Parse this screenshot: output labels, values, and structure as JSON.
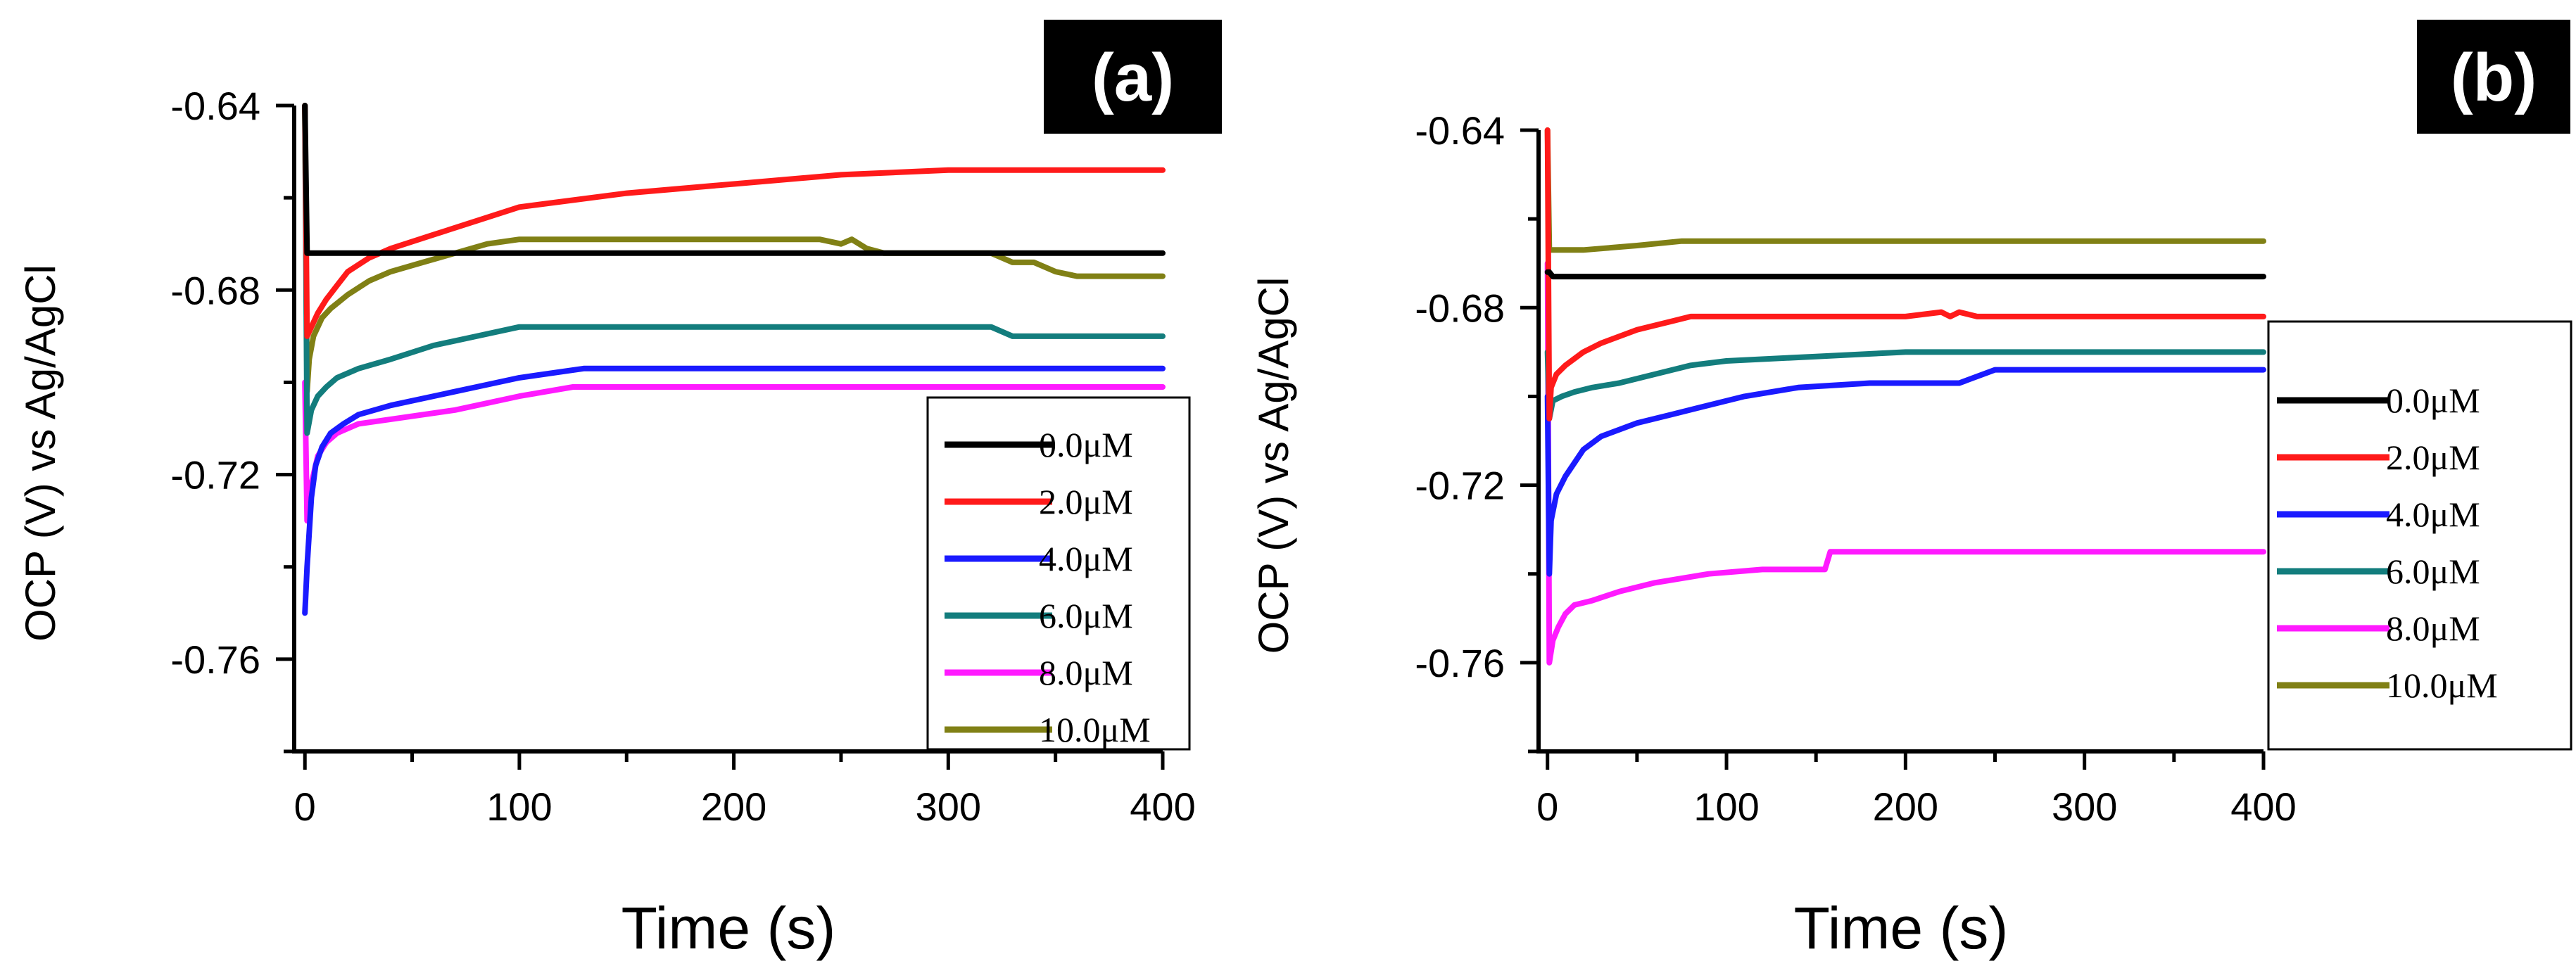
{
  "chart_data": [
    {
      "type": "line",
      "panel_label": "(a)",
      "xlabel": "Time (s)",
      "ylabel": "OCP (V) vs Ag/AgCl",
      "xlim": [
        -5,
        400
      ],
      "ylim": [
        -0.78,
        -0.64
      ],
      "xticks": [
        0,
        100,
        200,
        300,
        400
      ],
      "yticks": [
        -0.64,
        -0.68,
        -0.72,
        -0.76
      ],
      "ytick_labels": [
        "-0.64",
        "-0.68",
        "-0.72",
        "-0.76"
      ],
      "legend": "bottom-right",
      "series": [
        {
          "name": "0.0μM",
          "color": "#000000",
          "x": [
            0,
            1,
            2,
            5,
            400
          ],
          "y": [
            -0.64,
            -0.672,
            -0.672,
            -0.672,
            -0.672
          ]
        },
        {
          "name": "2.0μM",
          "color": "#ff1a1a",
          "x": [
            0,
            1,
            3,
            6,
            10,
            15,
            20,
            30,
            40,
            60,
            80,
            100,
            150,
            200,
            250,
            300,
            350,
            400
          ],
          "y": [
            -0.64,
            -0.69,
            -0.688,
            -0.685,
            -0.682,
            -0.679,
            -0.676,
            -0.673,
            -0.671,
            -0.668,
            -0.665,
            -0.662,
            -0.659,
            -0.657,
            -0.655,
            -0.654,
            -0.654,
            -0.654
          ]
        },
        {
          "name": "4.0μM",
          "color": "#1a1aff",
          "x": [
            0,
            1,
            3,
            5,
            8,
            12,
            18,
            25,
            40,
            60,
            80,
            100,
            130,
            200,
            300,
            400
          ],
          "y": [
            -0.75,
            -0.74,
            -0.725,
            -0.718,
            -0.714,
            -0.711,
            -0.709,
            -0.707,
            -0.705,
            -0.703,
            -0.701,
            -0.699,
            -0.697,
            -0.697,
            -0.697,
            -0.697
          ]
        },
        {
          "name": "6.0μM",
          "color": "#137d7d",
          "x": [
            0,
            1,
            3,
            6,
            10,
            15,
            25,
            40,
            60,
            80,
            100,
            150,
            200,
            320,
            330,
            360,
            400
          ],
          "y": [
            -0.64,
            -0.711,
            -0.706,
            -0.703,
            -0.701,
            -0.699,
            -0.697,
            -0.695,
            -0.692,
            -0.69,
            -0.688,
            -0.688,
            -0.688,
            -0.688,
            -0.69,
            -0.69,
            -0.69
          ]
        },
        {
          "name": "8.0μM",
          "color": "#ff1aff",
          "x": [
            0,
            1,
            3,
            6,
            10,
            15,
            25,
            40,
            70,
            100,
            125,
            200,
            300,
            400
          ],
          "y": [
            -0.7,
            -0.73,
            -0.722,
            -0.716,
            -0.713,
            -0.711,
            -0.709,
            -0.708,
            -0.706,
            -0.703,
            -0.701,
            -0.701,
            -0.701,
            -0.701
          ]
        },
        {
          "name": "10.0μM",
          "color": "#808015",
          "x": [
            0,
            1,
            2,
            4,
            8,
            12,
            20,
            30,
            40,
            55,
            70,
            85,
            100,
            150,
            200,
            240,
            250,
            255,
            262,
            270,
            320,
            330,
            340,
            350,
            360,
            400
          ],
          "y": [
            -0.64,
            -0.702,
            -0.695,
            -0.69,
            -0.686,
            -0.684,
            -0.681,
            -0.678,
            -0.676,
            -0.674,
            -0.672,
            -0.67,
            -0.669,
            -0.669,
            -0.669,
            -0.669,
            -0.67,
            -0.669,
            -0.671,
            -0.672,
            -0.672,
            -0.674,
            -0.674,
            -0.676,
            -0.677,
            -0.677
          ]
        }
      ]
    },
    {
      "type": "line",
      "panel_label": "(b)",
      "xlabel": "Time (s)",
      "ylabel": "OCP (V) vs Ag/AgCl",
      "xlim": [
        -5,
        400
      ],
      "ylim": [
        -0.78,
        -0.64
      ],
      "xticks": [
        0,
        100,
        200,
        300,
        400
      ],
      "yticks": [
        -0.64,
        -0.68,
        -0.72,
        -0.76
      ],
      "ytick_labels": [
        "-0.64",
        "-0.68",
        "-0.72",
        "-0.76"
      ],
      "legend": "outside-right",
      "series": [
        {
          "name": "0.0μM",
          "color": "#000000",
          "x": [
            0,
            1,
            3,
            400
          ],
          "y": [
            -0.672,
            -0.672,
            -0.673,
            -0.673
          ]
        },
        {
          "name": "2.0μM",
          "color": "#ff1a1a",
          "x": [
            0,
            1,
            2,
            5,
            10,
            20,
            30,
            50,
            70,
            80,
            200,
            220,
            225,
            230,
            240,
            400
          ],
          "y": [
            -0.64,
            -0.705,
            -0.698,
            -0.695,
            -0.693,
            -0.69,
            -0.688,
            -0.685,
            -0.683,
            -0.682,
            -0.682,
            -0.681,
            -0.682,
            -0.681,
            -0.682,
            -0.682
          ]
        },
        {
          "name": "4.0μM",
          "color": "#1a1aff",
          "x": [
            0,
            1,
            2,
            5,
            10,
            15,
            20,
            30,
            50,
            70,
            90,
            110,
            140,
            180,
            230,
            250,
            300,
            400
          ],
          "y": [
            -0.7,
            -0.74,
            -0.728,
            -0.722,
            -0.718,
            -0.715,
            -0.712,
            -0.709,
            -0.706,
            -0.704,
            -0.702,
            -0.7,
            -0.698,
            -0.697,
            -0.697,
            -0.694,
            -0.694,
            -0.694
          ]
        },
        {
          "name": "6.0μM",
          "color": "#137d7d",
          "x": [
            0,
            1,
            3,
            8,
            15,
            25,
            40,
            60,
            80,
            100,
            150,
            200,
            250,
            300,
            400
          ],
          "y": [
            -0.69,
            -0.705,
            -0.701,
            -0.7,
            -0.699,
            -0.698,
            -0.697,
            -0.695,
            -0.693,
            -0.692,
            -0.691,
            -0.69,
            -0.69,
            -0.69,
            -0.69
          ]
        },
        {
          "name": "8.0μM",
          "color": "#ff1aff",
          "x": [
            0,
            1,
            3,
            6,
            10,
            15,
            25,
            40,
            60,
            90,
            120,
            155,
            158,
            200,
            300,
            400
          ],
          "y": [
            -0.67,
            -0.76,
            -0.755,
            -0.752,
            -0.749,
            -0.747,
            -0.746,
            -0.744,
            -0.742,
            -0.74,
            -0.739,
            -0.739,
            -0.735,
            -0.735,
            -0.735,
            -0.735
          ]
        },
        {
          "name": "10.0μM",
          "color": "#808015",
          "x": [
            0,
            1,
            2,
            5,
            20,
            50,
            75,
            100,
            200,
            300,
            400
          ],
          "y": [
            -0.64,
            -0.667,
            -0.667,
            -0.667,
            -0.667,
            -0.666,
            -0.665,
            -0.665,
            -0.665,
            -0.665,
            -0.665
          ]
        }
      ]
    }
  ]
}
